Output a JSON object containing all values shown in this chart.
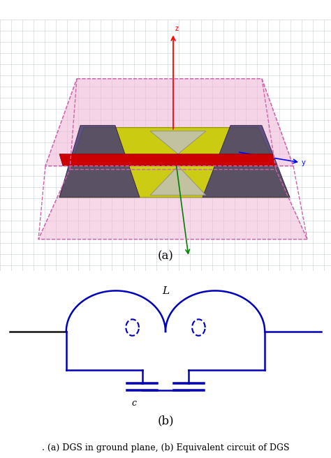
{
  "fig_width": 4.74,
  "fig_height": 6.56,
  "dpi": 100,
  "background_color": "#ffffff",
  "label_a": "(a)",
  "label_b": "(b)",
  "caption": ". (a) DGS in ground plane, (b) Equivalent circuit of DGS",
  "caption_fontsize": 9,
  "label_fontsize": 12,
  "circuit_color": "#0000bb",
  "circuit_lw": 1.8,
  "label_L": "L",
  "label_C": "c",
  "grid_color": "#c8d0d8",
  "pink_color": "#f0b8d8",
  "yellow_green": "#c8cc00",
  "dark_purple": "#4a4070",
  "red_strip": "#cc0000"
}
